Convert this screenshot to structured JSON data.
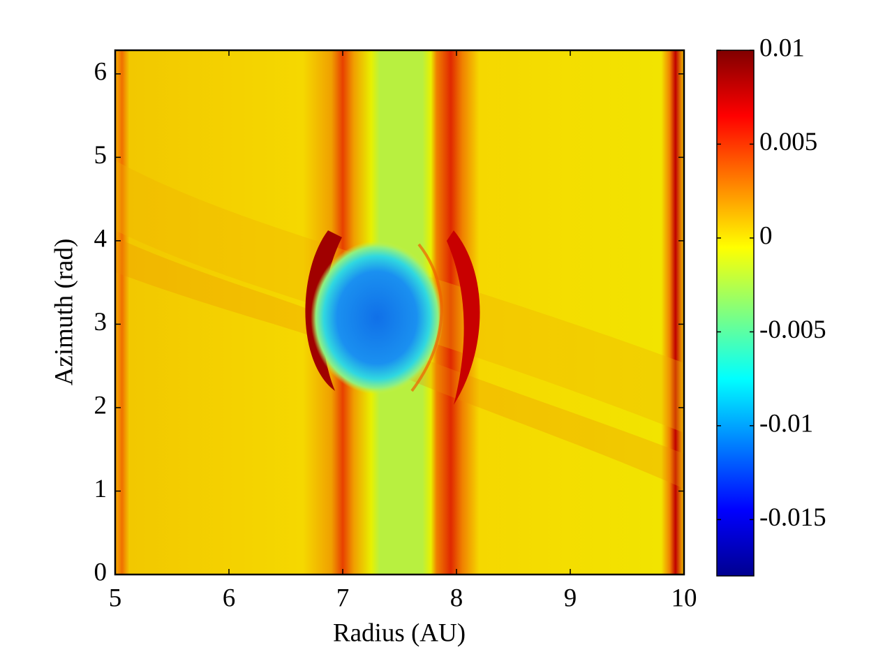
{
  "chart_data": {
    "type": "heatmap",
    "xlabel": "Radius (AU)",
    "ylabel": "Azimuth (rad)",
    "xlim": [
      5,
      10
    ],
    "xticks": [
      5,
      6,
      7,
      8,
      9,
      10
    ],
    "ylim": [
      0,
      6.283
    ],
    "yticks": [
      0,
      1,
      2,
      3,
      4,
      5,
      6
    ],
    "colormap": "jet",
    "clim": [
      -0.018,
      0.01
    ],
    "cticks": [
      0.01,
      0.005,
      0,
      -0.005,
      -0.01,
      -0.015
    ],
    "grid": false
  }
}
